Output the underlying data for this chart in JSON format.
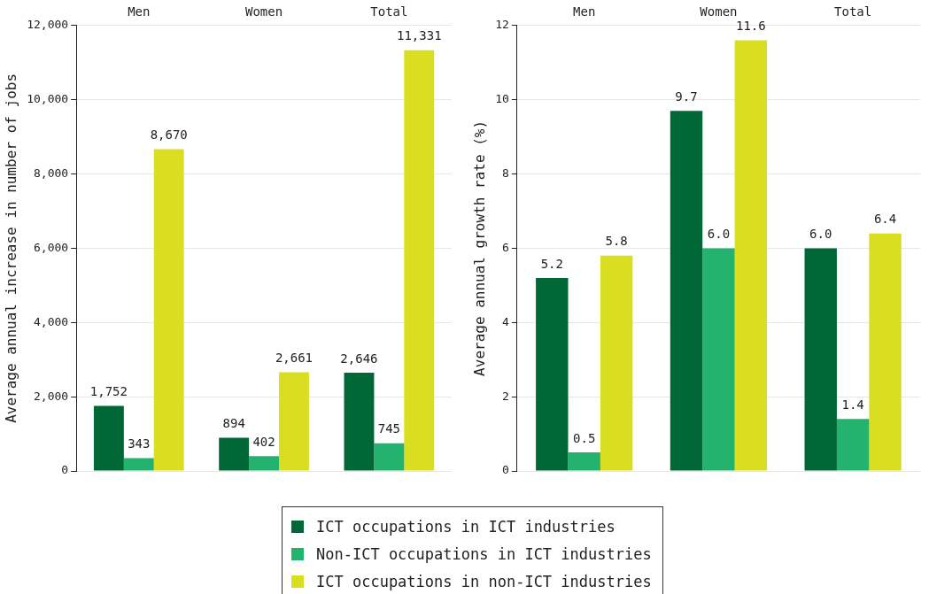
{
  "chart_data": [
    {
      "type": "bar",
      "categories": [
        "Men",
        "Women",
        "Total"
      ],
      "ylabel": "Average annual increase in number of jobs",
      "ylim": [
        0,
        12000
      ],
      "yticks": [
        0,
        {
          "value": 2000,
          "label": "2,000"
        },
        {
          "value": 4000,
          "label": "4,000"
        },
        {
          "value": 6000,
          "label": "6,000"
        },
        {
          "value": 8000,
          "label": "8,000"
        },
        {
          "value": 10000,
          "label": "10,000"
        },
        {
          "value": 12000,
          "label": "12,000"
        }
      ],
      "grid": "y",
      "legend": "bottom",
      "series": [
        {
          "name": "ICT occupations in ICT industries",
          "color": "#006837",
          "values": [
            1752,
            894,
            2646
          ],
          "value_labels": [
            "1,752",
            "894",
            "2,646"
          ]
        },
        {
          "name": "Non-ICT occupations in ICT industries",
          "color": "#24b36e",
          "values": [
            343,
            402,
            745
          ],
          "value_labels": [
            "343",
            "402",
            "745"
          ]
        },
        {
          "name": "ICT occupations in non-ICT industries",
          "color": "#d9de21",
          "values": [
            8670,
            2661,
            11331
          ],
          "value_labels": [
            "8,670",
            "2,661",
            "11,331"
          ]
        }
      ]
    },
    {
      "type": "bar",
      "categories": [
        "Men",
        "Women",
        "Total"
      ],
      "ylabel": "Average annual growth rate (%)",
      "ylim": [
        0,
        12
      ],
      "yticks": [
        0,
        2,
        4,
        6,
        8,
        10,
        12
      ],
      "grid": "y",
      "legend": "bottom",
      "series": [
        {
          "name": "ICT occupations in ICT industries",
          "color": "#006837",
          "values": [
            5.2,
            9.7,
            6.0
          ],
          "value_labels": [
            "5.2",
            "9.7",
            "6.0"
          ]
        },
        {
          "name": "Non-ICT occupations in ICT industries",
          "color": "#24b36e",
          "values": [
            0.5,
            6.0,
            1.4
          ],
          "value_labels": [
            "0.5",
            "6.0",
            "1.4"
          ]
        },
        {
          "name": "ICT occupations in non-ICT industries",
          "color": "#d9de21",
          "values": [
            5.8,
            11.6,
            6.4
          ],
          "value_labels": [
            "5.8",
            "11.6",
            "6.4"
          ]
        }
      ]
    }
  ]
}
